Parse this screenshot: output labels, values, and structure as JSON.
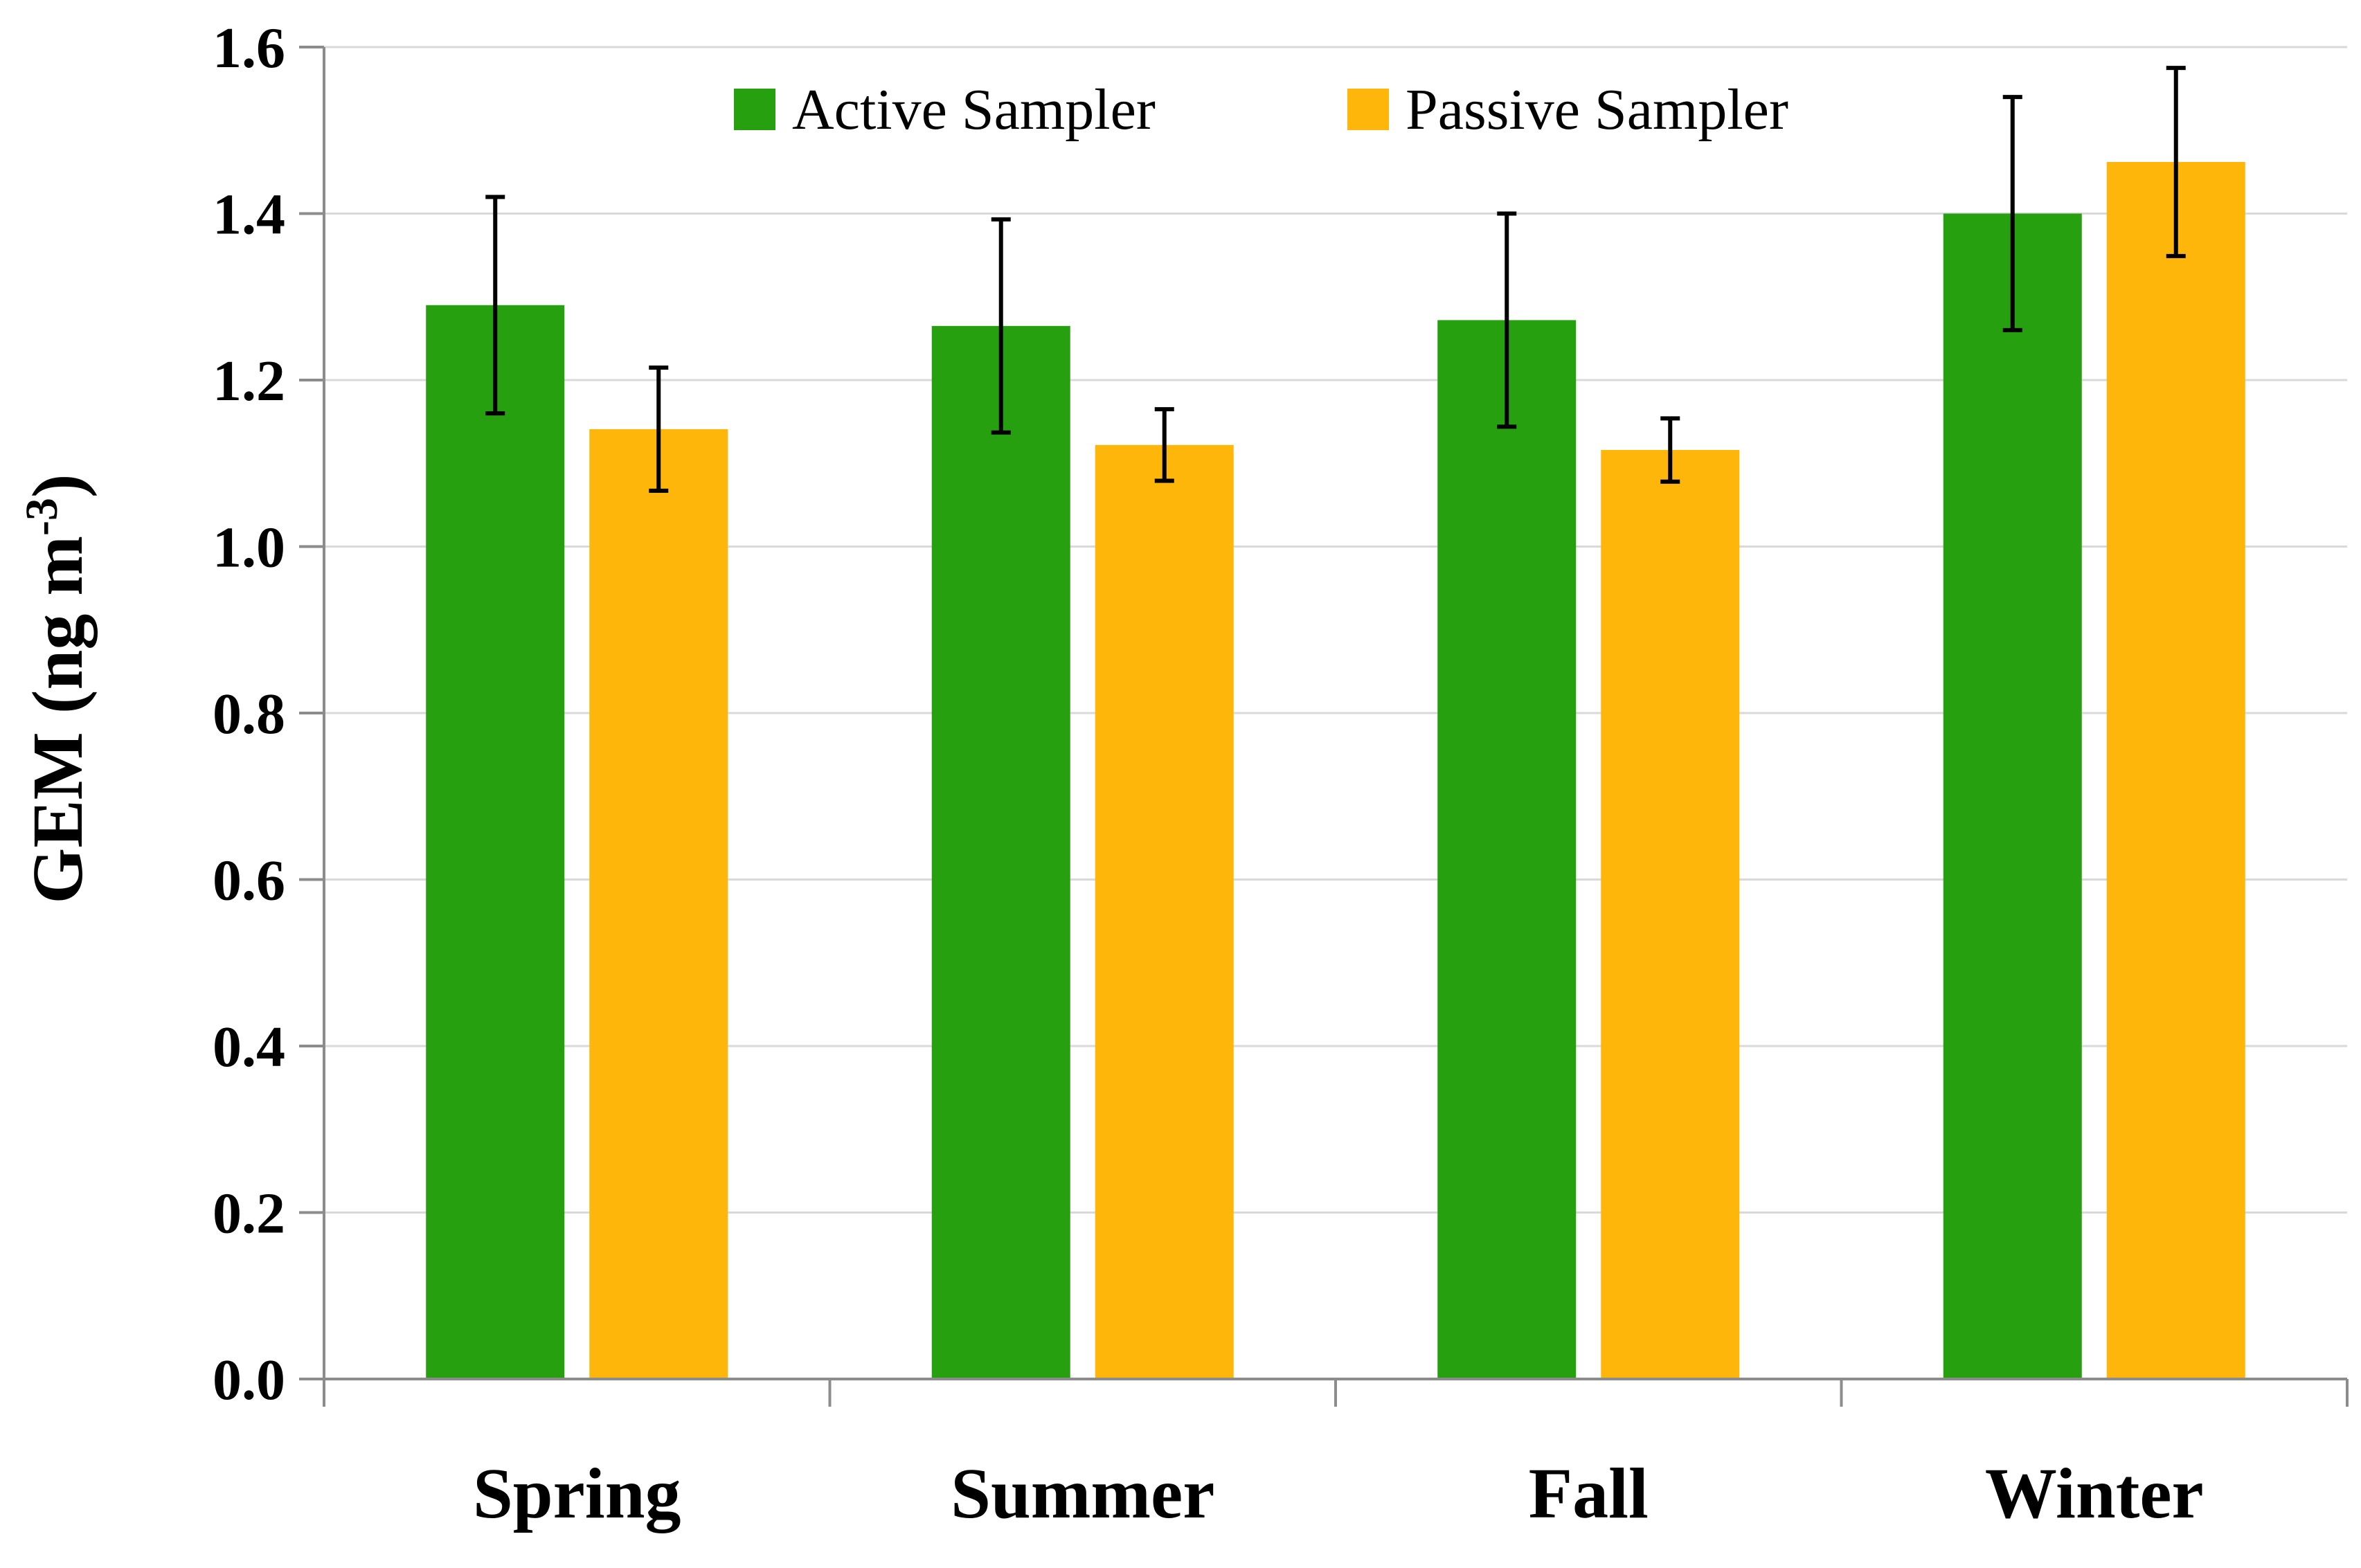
{
  "chart_data": {
    "type": "bar",
    "title": "",
    "xlabel": "",
    "ylabel": "GEM (ng m",
    "ylabel_superscript": "-3",
    "ylabel_close": ")",
    "categories": [
      "Spring",
      "Summer",
      "Fall",
      "Winter"
    ],
    "ylim": [
      0,
      1.6
    ],
    "yticks": [
      "0.0",
      "0.2",
      "0.4",
      "0.6",
      "0.8",
      "1.0",
      "1.2",
      "1.4",
      "1.6"
    ],
    "grid": true,
    "legend_position": "top-center",
    "series": [
      {
        "name": "Active Sampler",
        "color": "#27a010",
        "values": [
          1.29,
          1.265,
          1.272,
          1.4
        ],
        "errors": [
          0.13,
          0.128,
          0.128,
          0.14
        ]
      },
      {
        "name": "Passive Sampler",
        "color": "#ffb60a",
        "values": [
          1.141,
          1.122,
          1.116,
          1.462
        ],
        "errors": [
          0.074,
          0.043,
          0.038,
          0.113
        ]
      }
    ]
  }
}
